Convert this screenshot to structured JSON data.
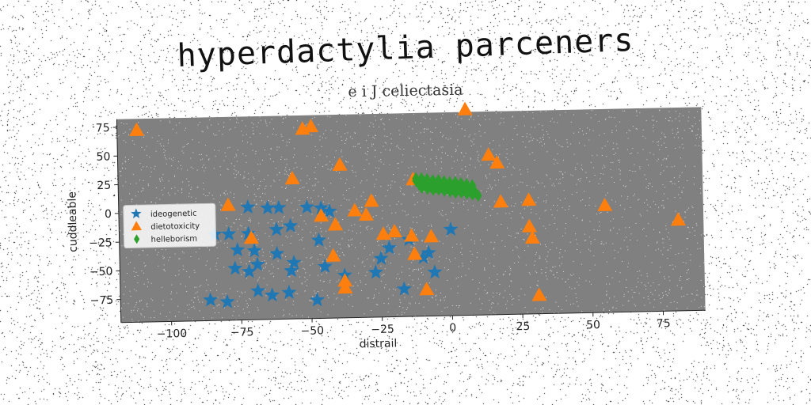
{
  "chart_data": {
    "type": "scatter",
    "title": "hyperdactylia parceners",
    "subtitle": "e i J celiectasia",
    "xlabel": "distrail",
    "ylabel": "cuddleable",
    "xlim": [
      -118,
      90
    ],
    "ylim": [
      -95,
      82
    ],
    "x_ticks": [
      -100,
      -75,
      -50,
      -25,
      0,
      25,
      50,
      75
    ],
    "y_ticks": [
      75,
      50,
      25,
      0,
      -25,
      -50,
      -75
    ],
    "x_tick_labels": [
      "−100",
      "−75",
      "−50",
      "−25",
      "0",
      "25",
      "50",
      "75"
    ],
    "y_tick_labels": [
      "75",
      "50",
      "25",
      "0",
      "−25",
      "−50",
      "−75"
    ],
    "background": "#808080",
    "legend_position": "center-left",
    "series": [
      {
        "name": "ideogenetic",
        "marker": "star",
        "color": "#1f77b4",
        "points": [
          [
            -72,
            3
          ],
          [
            -65,
            2
          ],
          [
            -61,
            2
          ],
          [
            -51,
            2
          ],
          [
            -46,
            1
          ],
          [
            -43,
            -2
          ],
          [
            -57,
            -14
          ],
          [
            -72,
            -20
          ],
          [
            -79,
            -20
          ],
          [
            -84,
            -20
          ],
          [
            -62,
            -17
          ],
          [
            -47,
            -27
          ],
          [
            -76,
            -34
          ],
          [
            -70,
            -35
          ],
          [
            -62,
            -38
          ],
          [
            -56,
            -46
          ],
          [
            -69,
            -47
          ],
          [
            -77,
            -50
          ],
          [
            -72,
            -53
          ],
          [
            -57,
            -53
          ],
          [
            -45,
            -50
          ],
          [
            -38,
            -58
          ],
          [
            -27,
            -56
          ],
          [
            -25,
            -44
          ],
          [
            -22,
            -35
          ],
          [
            -15,
            -28
          ],
          [
            -10,
            -44
          ],
          [
            -6,
            -57
          ],
          [
            -17,
            -71
          ],
          [
            -69,
            -70
          ],
          [
            -64,
            -74
          ],
          [
            -58,
            -72
          ],
          [
            -48,
            -79
          ],
          [
            -80,
            -79
          ],
          [
            -86,
            -77
          ],
          [
            -8,
            -40
          ],
          [
            0,
            -20
          ]
        ]
      },
      {
        "name": "dietotoxicity",
        "marker": "triangle",
        "color": "#ff7f0e",
        "points": [
          [
            -111,
            72
          ],
          [
            -52,
            70
          ],
          [
            -49,
            72
          ],
          [
            -39,
            38
          ],
          [
            -56,
            27
          ],
          [
            -46,
            -6
          ],
          [
            -34,
            -2
          ],
          [
            -30,
            -6
          ],
          [
            -79,
            5
          ],
          [
            -41,
            -14
          ],
          [
            -71,
            -24
          ],
          [
            -24,
            -23
          ],
          [
            -14,
            -25
          ],
          [
            -42,
            -41
          ],
          [
            -13,
            -41
          ],
          [
            -7,
            -26
          ],
          [
            -13,
            24
          ],
          [
            -20,
            -21
          ],
          [
            -38,
            -63
          ],
          [
            -38,
            -69
          ],
          [
            -9,
            -72
          ],
          [
            6,
            84
          ],
          [
            14,
            44
          ],
          [
            17,
            37
          ],
          [
            18,
            3
          ],
          [
            28,
            4
          ],
          [
            28,
            -19
          ],
          [
            29,
            -29
          ],
          [
            31,
            -79
          ],
          [
            55,
            -2
          ],
          [
            81,
            -16
          ],
          [
            -28,
            6
          ]
        ]
      },
      {
        "name": "helleborism",
        "marker": "diamond",
        "color": "#2ca02c",
        "points": [
          [
            -12,
            25
          ],
          [
            -10,
            25
          ],
          [
            -8,
            24
          ],
          [
            -6,
            23
          ],
          [
            -4,
            23
          ],
          [
            -2,
            22
          ],
          [
            0,
            21
          ],
          [
            2,
            21
          ],
          [
            4,
            20
          ],
          [
            6,
            19
          ],
          [
            8,
            18
          ],
          [
            -12,
            23
          ],
          [
            -10,
            22
          ],
          [
            -8,
            21
          ],
          [
            -6,
            20
          ],
          [
            -4,
            20
          ],
          [
            -2,
            19
          ],
          [
            0,
            18
          ],
          [
            2,
            18
          ],
          [
            4,
            17
          ],
          [
            6,
            16
          ],
          [
            8,
            15
          ],
          [
            -11,
            20
          ],
          [
            -9,
            19
          ],
          [
            -7,
            18
          ],
          [
            -5,
            17
          ],
          [
            -3,
            17
          ],
          [
            -1,
            16
          ],
          [
            1,
            15
          ],
          [
            3,
            15
          ],
          [
            5,
            14
          ],
          [
            7,
            13
          ],
          [
            9,
            12
          ],
          [
            -10,
            17
          ],
          [
            -8,
            16
          ],
          [
            -6,
            15
          ],
          [
            -4,
            15
          ],
          [
            -2,
            14
          ],
          [
            0,
            13
          ],
          [
            2,
            12
          ],
          [
            4,
            12
          ],
          [
            6,
            11
          ],
          [
            8,
            10
          ],
          [
            10,
            9
          ]
        ]
      }
    ]
  }
}
